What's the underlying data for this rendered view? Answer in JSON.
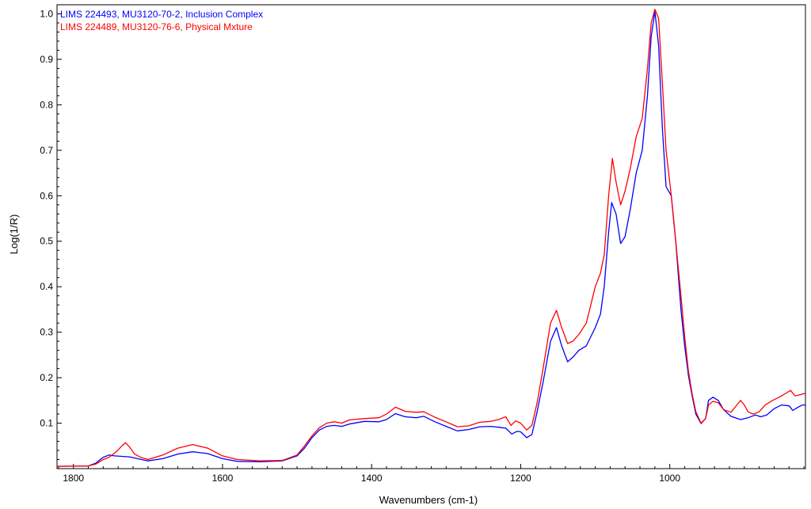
{
  "chart_data": {
    "type": "line",
    "title": "",
    "xlabel": "Wavenumbers (cm-1)",
    "ylabel": "Log(1/R)",
    "xlim": [
      1822,
      818
    ],
    "ylim": [
      0,
      1.02
    ],
    "x_reversed": true,
    "grid": false,
    "legend_position": "top-left",
    "x_ticks": [
      {
        "value": 1800,
        "label": "1800"
      },
      {
        "value": 1600,
        "label": "1600"
      },
      {
        "value": 1400,
        "label": "1400"
      },
      {
        "value": 1200,
        "label": "1200"
      },
      {
        "value": 1000,
        "label": "1000"
      }
    ],
    "y_ticks": [
      {
        "value": 0.1,
        "label": "0.1"
      },
      {
        "value": 0.2,
        "label": "0.2"
      },
      {
        "value": 0.3,
        "label": "0.3"
      },
      {
        "value": 0.4,
        "label": "0.4"
      },
      {
        "value": 0.5,
        "label": "0.5"
      },
      {
        "value": 0.6,
        "label": "0.6"
      },
      {
        "value": 0.7,
        "label": "0.7"
      },
      {
        "value": 0.8,
        "label": "0.8"
      },
      {
        "value": 0.9,
        "label": "0.9"
      },
      {
        "value": 1.0,
        "label": "1.0"
      }
    ],
    "series": [
      {
        "name": "LIMS 224493, MU3120-70-2, Inclusion Complex",
        "color": "#0000ff",
        "points": [
          [
            1822,
            0.005
          ],
          [
            1780,
            0.006
          ],
          [
            1770,
            0.012
          ],
          [
            1760,
            0.025
          ],
          [
            1752,
            0.03
          ],
          [
            1745,
            0.028
          ],
          [
            1725,
            0.026
          ],
          [
            1700,
            0.017
          ],
          [
            1680,
            0.022
          ],
          [
            1660,
            0.032
          ],
          [
            1640,
            0.037
          ],
          [
            1620,
            0.033
          ],
          [
            1600,
            0.022
          ],
          [
            1580,
            0.016
          ],
          [
            1550,
            0.015
          ],
          [
            1520,
            0.017
          ],
          [
            1500,
            0.028
          ],
          [
            1490,
            0.045
          ],
          [
            1480,
            0.068
          ],
          [
            1470,
            0.085
          ],
          [
            1460,
            0.093
          ],
          [
            1450,
            0.095
          ],
          [
            1440,
            0.093
          ],
          [
            1430,
            0.098
          ],
          [
            1410,
            0.104
          ],
          [
            1390,
            0.103
          ],
          [
            1380,
            0.108
          ],
          [
            1368,
            0.121
          ],
          [
            1355,
            0.114
          ],
          [
            1340,
            0.112
          ],
          [
            1330,
            0.115
          ],
          [
            1315,
            0.103
          ],
          [
            1300,
            0.093
          ],
          [
            1285,
            0.083
          ],
          [
            1270,
            0.086
          ],
          [
            1255,
            0.092
          ],
          [
            1240,
            0.093
          ],
          [
            1230,
            0.091
          ],
          [
            1220,
            0.089
          ],
          [
            1212,
            0.076
          ],
          [
            1205,
            0.082
          ],
          [
            1200,
            0.081
          ],
          [
            1192,
            0.068
          ],
          [
            1185,
            0.075
          ],
          [
            1178,
            0.125
          ],
          [
            1170,
            0.19
          ],
          [
            1160,
            0.28
          ],
          [
            1152,
            0.31
          ],
          [
            1145,
            0.27
          ],
          [
            1137,
            0.235
          ],
          [
            1130,
            0.245
          ],
          [
            1122,
            0.26
          ],
          [
            1112,
            0.27
          ],
          [
            1100,
            0.31
          ],
          [
            1093,
            0.34
          ],
          [
            1088,
            0.4
          ],
          [
            1082,
            0.52
          ],
          [
            1078,
            0.585
          ],
          [
            1072,
            0.56
          ],
          [
            1066,
            0.495
          ],
          [
            1060,
            0.51
          ],
          [
            1053,
            0.57
          ],
          [
            1045,
            0.65
          ],
          [
            1037,
            0.7
          ],
          [
            1030,
            0.82
          ],
          [
            1025,
            0.95
          ],
          [
            1020,
            1.005
          ],
          [
            1015,
            0.93
          ],
          [
            1010,
            0.75
          ],
          [
            1005,
            0.62
          ],
          [
            998,
            0.6
          ],
          [
            992,
            0.5
          ],
          [
            985,
            0.35
          ],
          [
            980,
            0.27
          ],
          [
            975,
            0.205
          ],
          [
            970,
            0.16
          ],
          [
            965,
            0.12
          ],
          [
            958,
            0.099
          ],
          [
            952,
            0.11
          ],
          [
            948,
            0.15
          ],
          [
            942,
            0.157
          ],
          [
            935,
            0.15
          ],
          [
            928,
            0.13
          ],
          [
            918,
            0.115
          ],
          [
            905,
            0.108
          ],
          [
            895,
            0.112
          ],
          [
            885,
            0.118
          ],
          [
            878,
            0.114
          ],
          [
            870,
            0.118
          ],
          [
            860,
            0.132
          ],
          [
            850,
            0.14
          ],
          [
            840,
            0.138
          ],
          [
            835,
            0.128
          ],
          [
            828,
            0.135
          ],
          [
            822,
            0.14
          ],
          [
            818,
            0.14
          ]
        ]
      },
      {
        "name": "LIMS 224489, MU3120-76-6, Physical Mxture",
        "color": "#ff0000",
        "points": [
          [
            1822,
            0.005
          ],
          [
            1780,
            0.006
          ],
          [
            1770,
            0.01
          ],
          [
            1760,
            0.02
          ],
          [
            1752,
            0.025
          ],
          [
            1742,
            0.038
          ],
          [
            1735,
            0.05
          ],
          [
            1730,
            0.057
          ],
          [
            1725,
            0.048
          ],
          [
            1718,
            0.032
          ],
          [
            1710,
            0.025
          ],
          [
            1700,
            0.02
          ],
          [
            1680,
            0.03
          ],
          [
            1660,
            0.045
          ],
          [
            1640,
            0.053
          ],
          [
            1620,
            0.045
          ],
          [
            1600,
            0.028
          ],
          [
            1580,
            0.02
          ],
          [
            1550,
            0.017
          ],
          [
            1520,
            0.018
          ],
          [
            1500,
            0.03
          ],
          [
            1490,
            0.05
          ],
          [
            1480,
            0.072
          ],
          [
            1470,
            0.09
          ],
          [
            1460,
            0.1
          ],
          [
            1450,
            0.103
          ],
          [
            1440,
            0.1
          ],
          [
            1430,
            0.107
          ],
          [
            1410,
            0.11
          ],
          [
            1390,
            0.112
          ],
          [
            1380,
            0.12
          ],
          [
            1368,
            0.135
          ],
          [
            1355,
            0.126
          ],
          [
            1340,
            0.124
          ],
          [
            1330,
            0.125
          ],
          [
            1315,
            0.113
          ],
          [
            1300,
            0.103
          ],
          [
            1285,
            0.092
          ],
          [
            1270,
            0.094
          ],
          [
            1255,
            0.102
          ],
          [
            1240,
            0.104
          ],
          [
            1230,
            0.108
          ],
          [
            1220,
            0.114
          ],
          [
            1213,
            0.095
          ],
          [
            1207,
            0.105
          ],
          [
            1200,
            0.1
          ],
          [
            1192,
            0.085
          ],
          [
            1185,
            0.095
          ],
          [
            1178,
            0.145
          ],
          [
            1170,
            0.22
          ],
          [
            1160,
            0.32
          ],
          [
            1152,
            0.348
          ],
          [
            1145,
            0.31
          ],
          [
            1137,
            0.275
          ],
          [
            1130,
            0.28
          ],
          [
            1122,
            0.295
          ],
          [
            1112,
            0.32
          ],
          [
            1100,
            0.4
          ],
          [
            1093,
            0.43
          ],
          [
            1088,
            0.47
          ],
          [
            1082,
            0.6
          ],
          [
            1077,
            0.682
          ],
          [
            1072,
            0.63
          ],
          [
            1066,
            0.58
          ],
          [
            1060,
            0.61
          ],
          [
            1053,
            0.66
          ],
          [
            1045,
            0.73
          ],
          [
            1037,
            0.77
          ],
          [
            1030,
            0.88
          ],
          [
            1025,
            0.98
          ],
          [
            1020,
            1.01
          ],
          [
            1015,
            0.99
          ],
          [
            1010,
            0.85
          ],
          [
            1005,
            0.7
          ],
          [
            998,
            0.6
          ],
          [
            992,
            0.5
          ],
          [
            985,
            0.38
          ],
          [
            980,
            0.29
          ],
          [
            975,
            0.215
          ],
          [
            970,
            0.165
          ],
          [
            965,
            0.125
          ],
          [
            958,
            0.1
          ],
          [
            952,
            0.11
          ],
          [
            948,
            0.14
          ],
          [
            942,
            0.148
          ],
          [
            935,
            0.145
          ],
          [
            928,
            0.13
          ],
          [
            918,
            0.124
          ],
          [
            910,
            0.14
          ],
          [
            905,
            0.15
          ],
          [
            900,
            0.14
          ],
          [
            895,
            0.125
          ],
          [
            888,
            0.12
          ],
          [
            880,
            0.125
          ],
          [
            872,
            0.14
          ],
          [
            862,
            0.15
          ],
          [
            852,
            0.158
          ],
          [
            842,
            0.168
          ],
          [
            838,
            0.172
          ],
          [
            832,
            0.16
          ],
          [
            826,
            0.162
          ],
          [
            820,
            0.165
          ],
          [
            818,
            0.165
          ]
        ]
      }
    ]
  }
}
